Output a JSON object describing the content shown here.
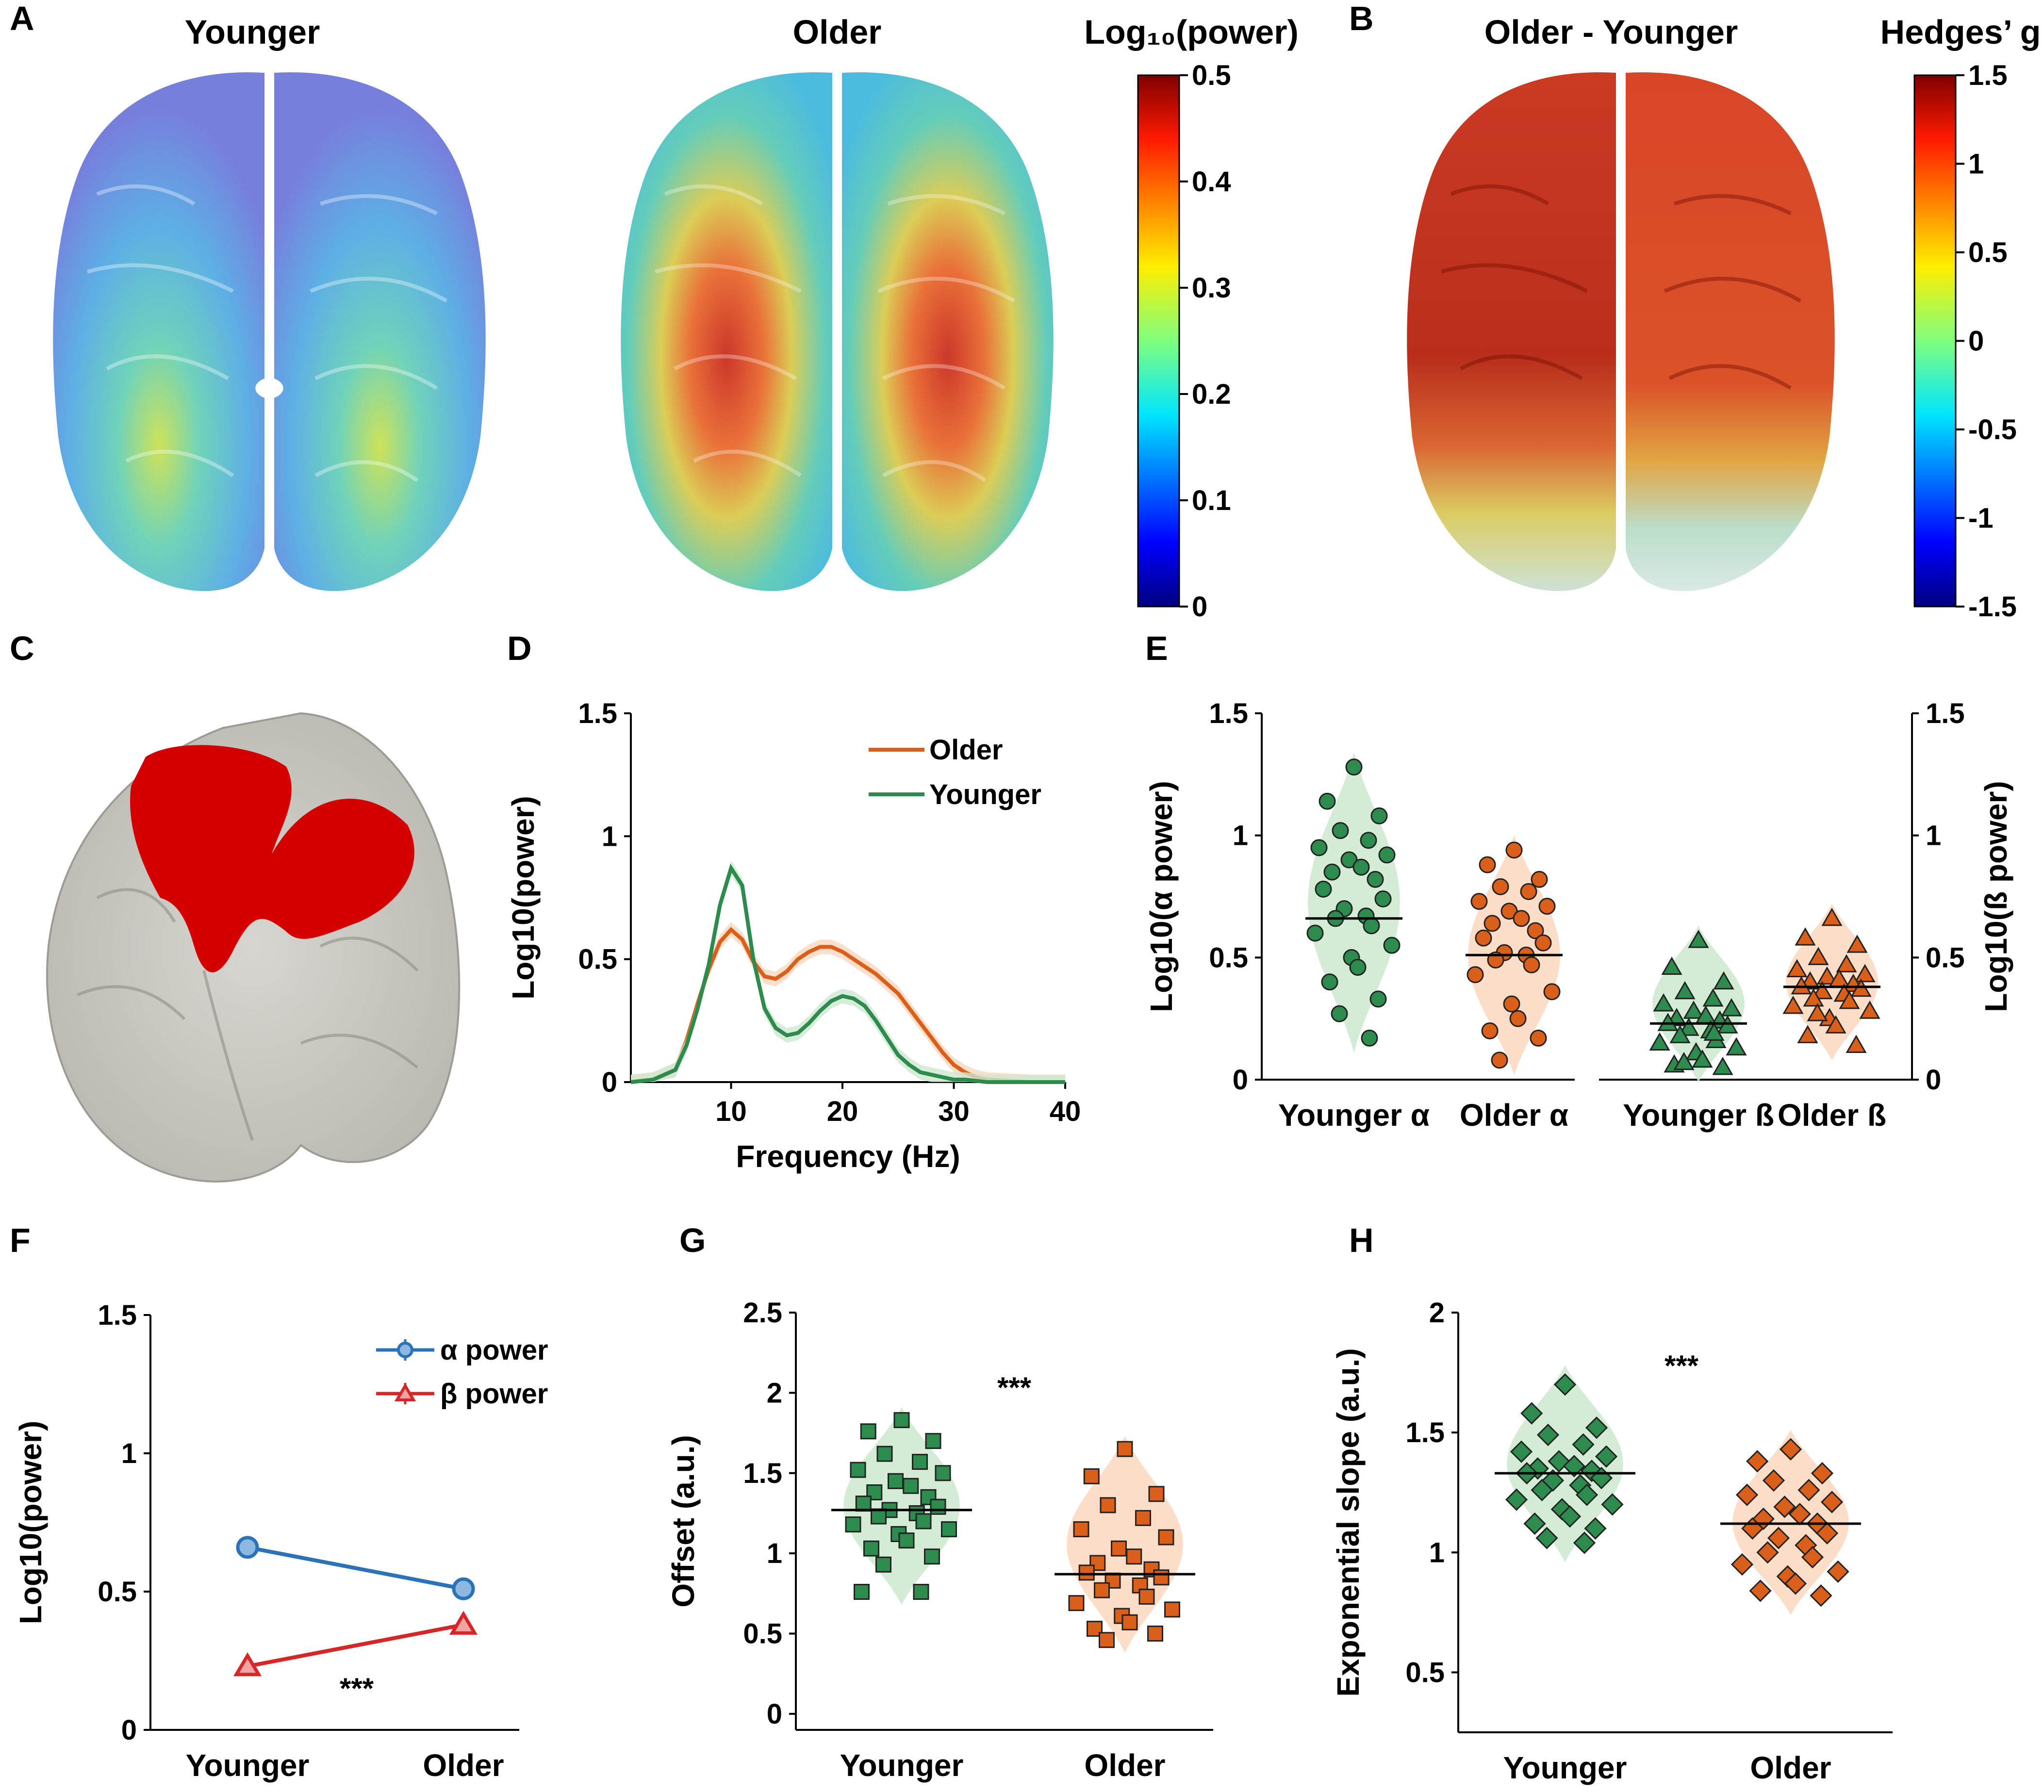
{
  "panel_labels": {
    "A": "A",
    "B": "B",
    "C": "C",
    "D": "D",
    "E": "E",
    "F": "F",
    "G": "G",
    "H": "H"
  },
  "brains": {
    "younger_title": "Younger",
    "older_title": "Older",
    "diff_title": "Older - Younger",
    "power_colorbar": {
      "title": "Log₁₀(power)",
      "ticks": [
        "0.5",
        "0.4",
        "0.3",
        "0.2",
        "0.1",
        "0"
      ]
    },
    "hedges_colorbar": {
      "title": "Hedges’ g",
      "ticks": [
        "1.5",
        "1",
        "0.5",
        "0",
        "-0.5",
        "-1",
        "-1.5"
      ]
    }
  },
  "colors": {
    "older": "#d95f1a",
    "younger": "#2e8b4e",
    "alpha": "#2b73b8",
    "beta": "#d62728",
    "roi": "#d40000"
  },
  "chart_data": [
    {
      "id": "D",
      "type": "line",
      "xlabel": "Frequency (Hz)",
      "ylabel": "Log10(power)",
      "xlim": [
        1,
        40
      ],
      "ylim": [
        0,
        1.5
      ],
      "xticks": [
        "10",
        "20",
        "30",
        "40"
      ],
      "yticks": [
        "0",
        "0.5",
        "1",
        "1.5"
      ],
      "legend": [
        "Older",
        "Younger"
      ],
      "series": [
        {
          "name": "Older",
          "x": [
            1,
            3,
            5,
            6,
            7,
            8,
            9,
            10,
            11,
            12,
            13,
            14,
            15,
            16,
            17,
            18,
            19,
            20,
            21,
            22,
            23,
            24,
            25,
            26,
            27,
            28,
            29,
            30,
            31,
            32,
            33,
            35,
            37,
            40
          ],
          "y": [
            0.0,
            0.01,
            0.05,
            0.17,
            0.32,
            0.46,
            0.57,
            0.62,
            0.58,
            0.49,
            0.43,
            0.42,
            0.45,
            0.5,
            0.53,
            0.55,
            0.55,
            0.53,
            0.5,
            0.47,
            0.44,
            0.4,
            0.36,
            0.3,
            0.24,
            0.18,
            0.12,
            0.07,
            0.04,
            0.02,
            0.01,
            0.005,
            0.0,
            0.0
          ]
        },
        {
          "name": "Younger",
          "x": [
            1,
            3,
            5,
            6,
            7,
            8,
            9,
            10,
            11,
            12,
            13,
            14,
            15,
            16,
            17,
            18,
            19,
            20,
            21,
            22,
            23,
            24,
            25,
            26,
            27,
            28,
            29,
            30,
            31,
            33,
            35,
            37,
            40
          ],
          "y": [
            0.0,
            0.01,
            0.05,
            0.15,
            0.3,
            0.48,
            0.72,
            0.87,
            0.8,
            0.5,
            0.3,
            0.22,
            0.19,
            0.2,
            0.24,
            0.29,
            0.33,
            0.35,
            0.34,
            0.31,
            0.25,
            0.18,
            0.11,
            0.07,
            0.04,
            0.03,
            0.02,
            0.01,
            0.01,
            0.0,
            0.0,
            0.0,
            0.0
          ]
        }
      ]
    },
    {
      "id": "E",
      "type": "scatter",
      "ylabel": "Log10(α power)",
      "ylabel_right": "Log10(ß power)",
      "ylim": [
        0,
        1.5
      ],
      "yticks": [
        "0",
        "0.5",
        "1",
        "1.5"
      ],
      "categories": [
        "Younger α",
        "Older α",
        "Younger ß",
        "Older ß"
      ],
      "means": [
        0.66,
        0.51,
        0.23,
        0.38
      ],
      "points": [
        [
          1.28,
          1.14,
          1.08,
          1.02,
          0.98,
          0.95,
          0.92,
          0.9,
          0.87,
          0.85,
          0.82,
          0.78,
          0.74,
          0.7,
          0.67,
          0.66,
          0.63,
          0.6,
          0.55,
          0.5,
          0.46,
          0.4,
          0.33,
          0.27,
          0.17
        ],
        [
          0.94,
          0.88,
          0.82,
          0.79,
          0.77,
          0.73,
          0.71,
          0.69,
          0.66,
          0.64,
          0.61,
          0.58,
          0.56,
          0.52,
          0.51,
          0.49,
          0.47,
          0.43,
          0.36,
          0.31,
          0.25,
          0.2,
          0.17,
          0.08
        ],
        [
          0.57,
          0.46,
          0.4,
          0.36,
          0.33,
          0.31,
          0.29,
          0.28,
          0.26,
          0.25,
          0.24,
          0.23,
          0.22,
          0.21,
          0.2,
          0.18,
          0.16,
          0.15,
          0.13,
          0.11,
          0.08,
          0.06,
          0.05,
          0.07,
          0.19
        ],
        [
          0.66,
          0.58,
          0.55,
          0.5,
          0.47,
          0.45,
          0.43,
          0.42,
          0.41,
          0.4,
          0.39,
          0.38,
          0.37,
          0.36,
          0.35,
          0.33,
          0.32,
          0.3,
          0.28,
          0.25,
          0.22,
          0.18,
          0.14,
          0.27
        ]
      ]
    },
    {
      "id": "F",
      "type": "line",
      "ylabel": "Log10(power)",
      "ylim": [
        0,
        1.5
      ],
      "yticks": [
        "0",
        "0.5",
        "1",
        "1.5"
      ],
      "categories": [
        "Younger",
        "Older"
      ],
      "legend": [
        "α power",
        "β power"
      ],
      "series": [
        {
          "name": "α power",
          "values": [
            0.66,
            0.51
          ],
          "error": [
            0.04,
            0.04
          ]
        },
        {
          "name": "β power",
          "values": [
            0.23,
            0.38
          ],
          "error": [
            0.02,
            0.02
          ]
        }
      ],
      "significance": "***"
    },
    {
      "id": "G",
      "type": "scatter",
      "ylabel": "Offset (a.u.)",
      "ylim": [
        -0.1,
        2.5
      ],
      "yticks": [
        "0",
        "0.5",
        "1",
        "1.5",
        "2",
        "2.5"
      ],
      "categories": [
        "Younger",
        "Older"
      ],
      "means": [
        1.27,
        0.87
      ],
      "significance": "***",
      "points": [
        [
          1.83,
          1.76,
          1.7,
          1.62,
          1.57,
          1.52,
          1.5,
          1.45,
          1.42,
          1.38,
          1.35,
          1.31,
          1.29,
          1.27,
          1.25,
          1.23,
          1.2,
          1.18,
          1.15,
          1.12,
          1.08,
          1.03,
          0.98,
          0.93,
          0.76,
          0.76
        ],
        [
          1.65,
          1.48,
          1.37,
          1.3,
          1.22,
          1.15,
          1.1,
          1.03,
          0.98,
          0.94,
          0.9,
          0.88,
          0.85,
          0.83,
          0.8,
          0.77,
          0.73,
          0.69,
          0.65,
          0.61,
          0.57,
          0.53,
          0.5,
          0.46
        ]
      ]
    },
    {
      "id": "H",
      "type": "scatter",
      "ylabel": "Exponential slope (a.u.)",
      "ylim": [
        0.25,
        2
      ],
      "yticks": [
        "0.5",
        "1",
        "1.5",
        "2"
      ],
      "categories": [
        "Younger",
        "Older"
      ],
      "means": [
        1.33,
        1.12
      ],
      "significance": "***",
      "points": [
        [
          1.7,
          1.58,
          1.52,
          1.49,
          1.45,
          1.42,
          1.4,
          1.38,
          1.36,
          1.35,
          1.34,
          1.33,
          1.31,
          1.3,
          1.28,
          1.26,
          1.24,
          1.22,
          1.2,
          1.18,
          1.15,
          1.12,
          1.1,
          1.06,
          1.04
        ],
        [
          1.43,
          1.38,
          1.33,
          1.3,
          1.26,
          1.24,
          1.21,
          1.19,
          1.16,
          1.14,
          1.12,
          1.1,
          1.08,
          1.06,
          1.03,
          1.0,
          0.98,
          0.95,
          0.92,
          0.9,
          0.87,
          0.84,
          0.82
        ]
      ]
    }
  ]
}
